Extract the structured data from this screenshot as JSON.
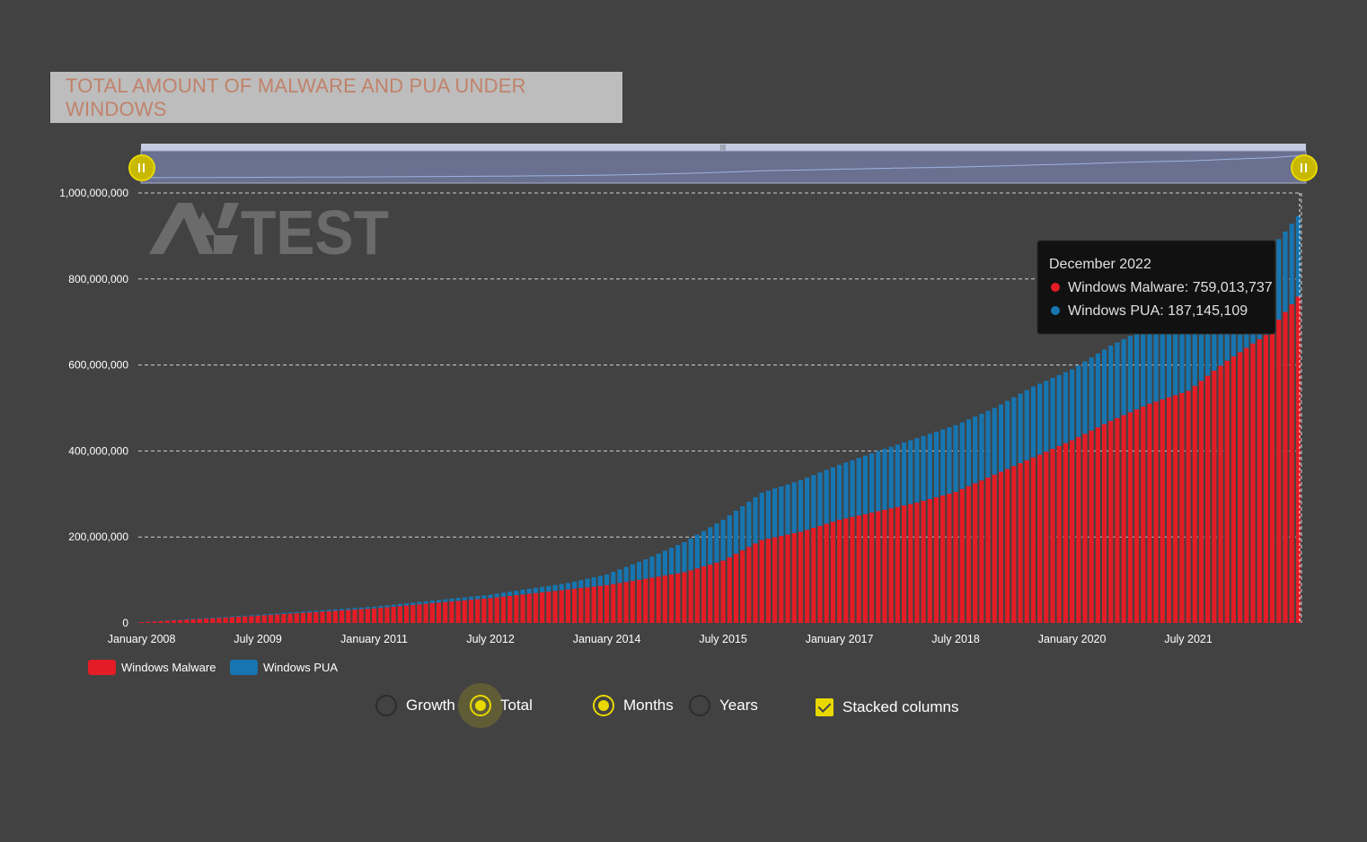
{
  "title": "TOTAL AMOUNT OF MALWARE AND PUA UNDER WINDOWS",
  "logo_text": "AV-TEST",
  "colors": {
    "malware": "#e31c25",
    "pua": "#1775b0",
    "accent": "#e8d800",
    "background": "#424242",
    "title_text": "#c0826a"
  },
  "tooltip": {
    "date": "December 2022",
    "malware_label": "Windows Malware: 759,013,737",
    "pua_label": "Windows PUA: 187,145,109"
  },
  "controls": {
    "growth": "Growth",
    "total": "Total",
    "months": "Months",
    "years": "Years",
    "stacked": "Stacked columns",
    "total_selected": true,
    "months_selected": true,
    "stacked_checked": true
  },
  "chart_data": {
    "type": "bar",
    "stacked": true,
    "start": "January 2008",
    "end": "December 2022",
    "interval": "month",
    "x_tick_labels": [
      "January 2008",
      "July 2009",
      "January 2011",
      "July 2012",
      "January 2014",
      "July 2015",
      "January 2017",
      "July 2018",
      "January 2020",
      "July 2021"
    ],
    "y_tick_labels": [
      "0",
      "200,000,000",
      "400,000,000",
      "600,000,000",
      "800,000,000",
      "1,000,000,000"
    ],
    "ylim": [
      0,
      1000000000
    ],
    "legend_position": "bottom-left",
    "grid": true,
    "series": [
      {
        "name": "Windows Malware",
        "anchors": [
          [
            0,
            2000000
          ],
          [
            18,
            17000000
          ],
          [
            36,
            34000000
          ],
          [
            54,
            58000000
          ],
          [
            72,
            88000000
          ],
          [
            84,
            118000000
          ],
          [
            90,
            145000000
          ],
          [
            96,
            193000000
          ],
          [
            102,
            212000000
          ],
          [
            108,
            240000000
          ],
          [
            114,
            260000000
          ],
          [
            120,
            280000000
          ],
          [
            126,
            305000000
          ],
          [
            132,
            345000000
          ],
          [
            138,
            385000000
          ],
          [
            144,
            425000000
          ],
          [
            150,
            470000000
          ],
          [
            156,
            510000000
          ],
          [
            162,
            540000000
          ],
          [
            168,
            610000000
          ],
          [
            174,
            670000000
          ],
          [
            179,
            759013737
          ]
        ]
      },
      {
        "name": "Windows PUA",
        "anchors": [
          [
            0,
            300000
          ],
          [
            36,
            4000000
          ],
          [
            54,
            8000000
          ],
          [
            66,
            15000000
          ],
          [
            72,
            25000000
          ],
          [
            78,
            45000000
          ],
          [
            84,
            70000000
          ],
          [
            90,
            95000000
          ],
          [
            96,
            110000000
          ],
          [
            102,
            120000000
          ],
          [
            108,
            128000000
          ],
          [
            114,
            140000000
          ],
          [
            120,
            150000000
          ],
          [
            126,
            155000000
          ],
          [
            132,
            155000000
          ],
          [
            138,
            165000000
          ],
          [
            144,
            165000000
          ],
          [
            150,
            175000000
          ],
          [
            156,
            180000000
          ],
          [
            162,
            185000000
          ],
          [
            168,
            185000000
          ],
          [
            174,
            187000000
          ],
          [
            179,
            187145109
          ]
        ]
      }
    ]
  }
}
